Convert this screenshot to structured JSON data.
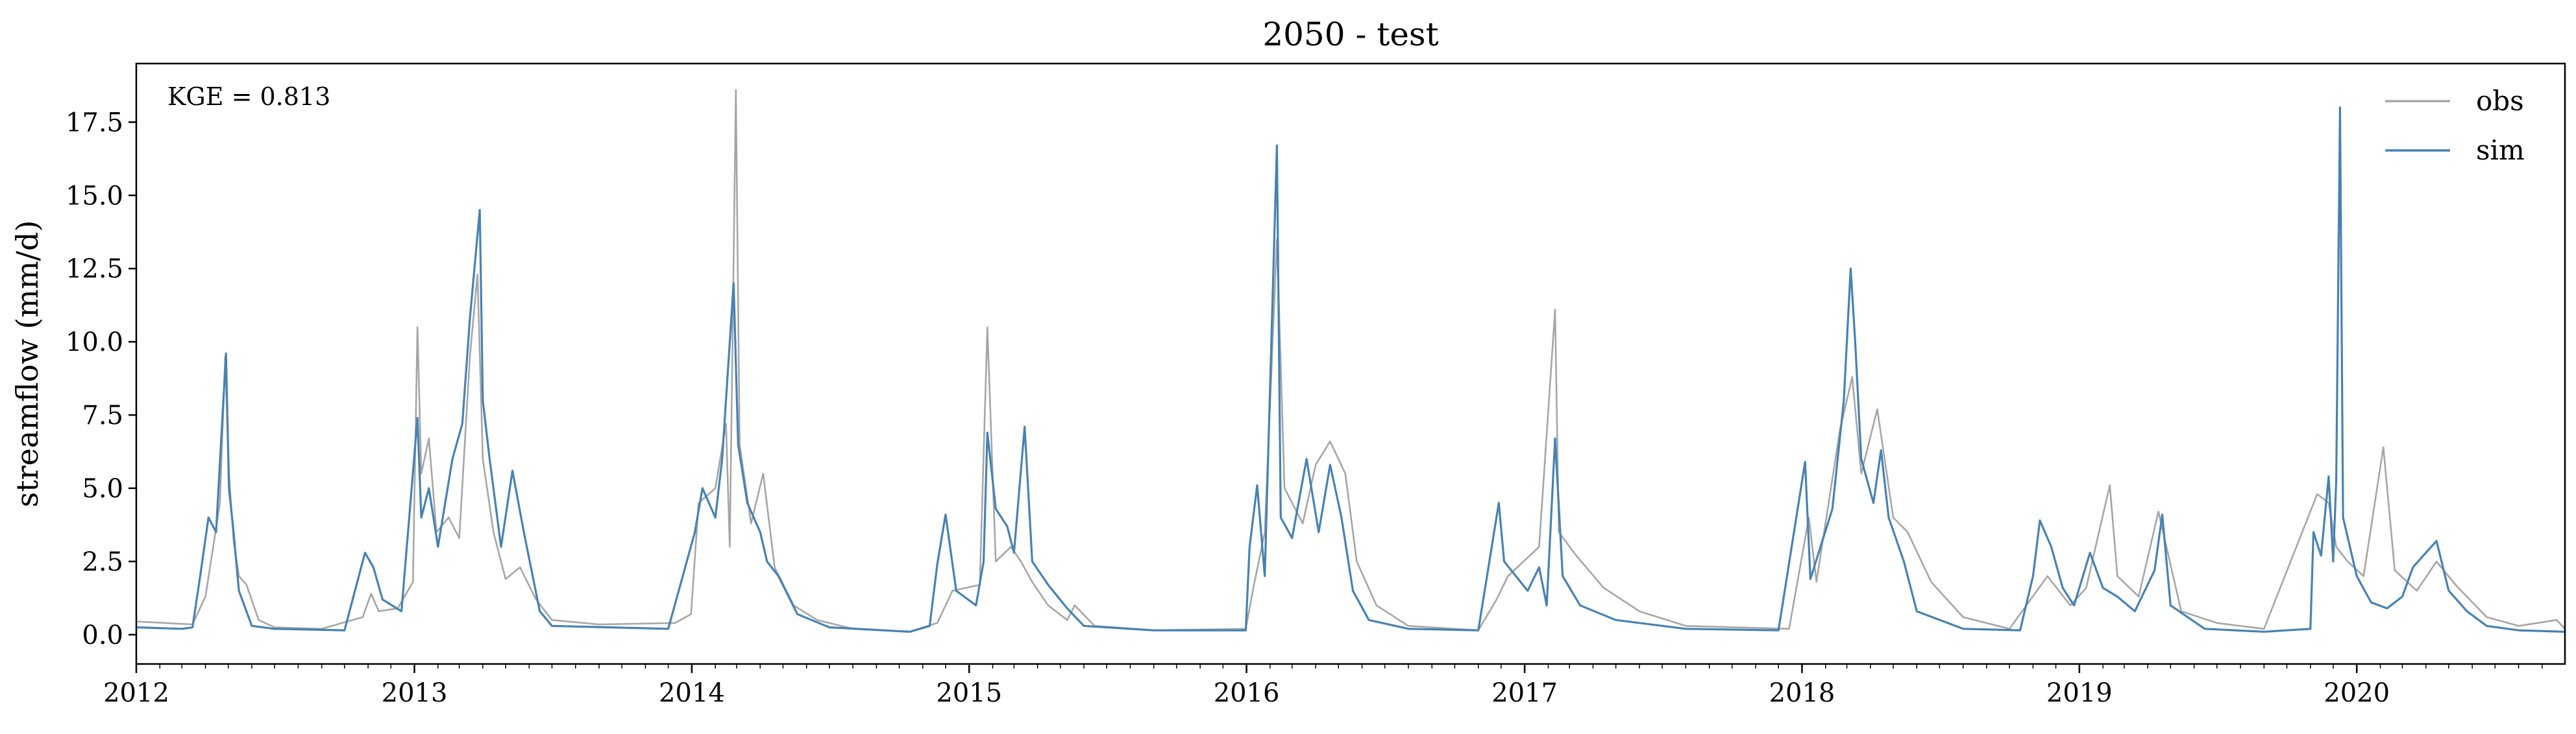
{
  "chart_data": {
    "type": "line",
    "title": "2050 - test",
    "xlabel": "",
    "ylabel": "streamflow (mm/d)",
    "annotation": "KGE = 0.813",
    "xlim": [
      "2012-01-01",
      "2020-10-01"
    ],
    "ylim": [
      -1.0,
      19.5
    ],
    "x_ticks": [
      "2012",
      "2013",
      "2014",
      "2015",
      "2016",
      "2017",
      "2018",
      "2019",
      "2020"
    ],
    "y_ticks": [
      "0.0",
      "2.5",
      "5.0",
      "7.5",
      "10.0",
      "12.5",
      "15.0",
      "17.5"
    ],
    "legend_position": "top-right",
    "grid": false,
    "series": [
      {
        "name": "obs",
        "color": "#a6a6a6",
        "points": [
          [
            "2012-01-01",
            0.45
          ],
          [
            "2012-03-15",
            0.35
          ],
          [
            "2012-04-01",
            1.3
          ],
          [
            "2012-04-10",
            2.8
          ],
          [
            "2012-04-20",
            4.5
          ],
          [
            "2012-04-27",
            9.5
          ],
          [
            "2012-05-02",
            5.5
          ],
          [
            "2012-05-08",
            3.2
          ],
          [
            "2012-05-15",
            2.0
          ],
          [
            "2012-05-25",
            1.7
          ],
          [
            "2012-06-10",
            0.5
          ],
          [
            "2012-07-01",
            0.25
          ],
          [
            "2012-09-01",
            0.2
          ],
          [
            "2012-10-25",
            0.6
          ],
          [
            "2012-11-05",
            1.4
          ],
          [
            "2012-11-15",
            0.8
          ],
          [
            "2012-12-10",
            0.9
          ],
          [
            "2012-12-30",
            1.8
          ],
          [
            "2013-01-05",
            10.5
          ],
          [
            "2013-01-10",
            5.5
          ],
          [
            "2013-01-20",
            6.7
          ],
          [
            "2013-01-30",
            3.5
          ],
          [
            "2013-02-15",
            4.0
          ],
          [
            "2013-03-01",
            3.3
          ],
          [
            "2013-03-15",
            9.5
          ],
          [
            "2013-03-25",
            12.3
          ],
          [
            "2013-04-01",
            6.0
          ],
          [
            "2013-04-15",
            3.5
          ],
          [
            "2013-05-01",
            1.9
          ],
          [
            "2013-05-20",
            2.3
          ],
          [
            "2013-06-10",
            1.2
          ],
          [
            "2013-07-01",
            0.5
          ],
          [
            "2013-09-01",
            0.35
          ],
          [
            "2013-12-10",
            0.4
          ],
          [
            "2013-12-31",
            0.7
          ],
          [
            "2014-01-10",
            4.5
          ],
          [
            "2014-02-01",
            5.0
          ],
          [
            "2014-02-15",
            7.2
          ],
          [
            "2014-02-20",
            3.0
          ],
          [
            "2014-02-28",
            18.6
          ],
          [
            "2014-03-05",
            6.5
          ],
          [
            "2014-03-20",
            3.8
          ],
          [
            "2014-04-05",
            5.5
          ],
          [
            "2014-04-20",
            2.3
          ],
          [
            "2014-05-15",
            1.0
          ],
          [
            "2014-06-15",
            0.5
          ],
          [
            "2014-08-01",
            0.2
          ],
          [
            "2014-10-15",
            0.1
          ],
          [
            "2014-11-20",
            0.4
          ],
          [
            "2014-12-10",
            1.5
          ],
          [
            "2015-01-15",
            1.7
          ],
          [
            "2015-01-25",
            10.5
          ],
          [
            "2015-02-05",
            2.5
          ],
          [
            "2015-02-25",
            3.0
          ],
          [
            "2015-03-10",
            2.5
          ],
          [
            "2015-03-25",
            1.8
          ],
          [
            "2015-04-15",
            1.0
          ],
          [
            "2015-05-10",
            0.5
          ],
          [
            "2015-05-20",
            1.0
          ],
          [
            "2015-06-15",
            0.3
          ],
          [
            "2015-09-01",
            0.15
          ],
          [
            "2015-12-31",
            0.2
          ],
          [
            "2016-01-10",
            1.6
          ],
          [
            "2016-01-25",
            3.5
          ],
          [
            "2016-02-10",
            13.5
          ],
          [
            "2016-02-20",
            5.0
          ],
          [
            "2016-03-15",
            3.8
          ],
          [
            "2016-04-01",
            5.8
          ],
          [
            "2016-04-20",
            6.6
          ],
          [
            "2016-05-10",
            5.5
          ],
          [
            "2016-05-25",
            2.5
          ],
          [
            "2016-06-20",
            1.0
          ],
          [
            "2016-08-01",
            0.3
          ],
          [
            "2016-11-01",
            0.15
          ],
          [
            "2016-11-25",
            1.2
          ],
          [
            "2016-12-10",
            2.0
          ],
          [
            "2017-01-20",
            3.0
          ],
          [
            "2017-02-10",
            11.1
          ],
          [
            "2017-02-15",
            3.5
          ],
          [
            "2017-03-10",
            2.7
          ],
          [
            "2017-04-15",
            1.6
          ],
          [
            "2017-06-01",
            0.8
          ],
          [
            "2017-08-01",
            0.3
          ],
          [
            "2017-12-15",
            0.2
          ],
          [
            "2018-01-10",
            4.0
          ],
          [
            "2018-01-20",
            1.8
          ],
          [
            "2018-02-05",
            4.5
          ],
          [
            "2018-02-20",
            7.0
          ],
          [
            "2018-03-08",
            8.8
          ],
          [
            "2018-03-20",
            5.5
          ],
          [
            "2018-04-10",
            7.7
          ],
          [
            "2018-05-01",
            4.0
          ],
          [
            "2018-05-20",
            3.5
          ],
          [
            "2018-06-20",
            1.8
          ],
          [
            "2018-08-01",
            0.6
          ],
          [
            "2018-10-01",
            0.2
          ],
          [
            "2018-11-20",
            2.0
          ],
          [
            "2018-12-20",
            1.0
          ],
          [
            "2019-01-10",
            1.6
          ],
          [
            "2019-01-25",
            3.3
          ],
          [
            "2019-02-10",
            5.1
          ],
          [
            "2019-02-20",
            2.0
          ],
          [
            "2019-03-20",
            1.3
          ],
          [
            "2019-04-15",
            4.2
          ],
          [
            "2019-05-15",
            0.8
          ],
          [
            "2019-07-01",
            0.4
          ],
          [
            "2019-09-01",
            0.2
          ],
          [
            "2019-11-10",
            4.8
          ],
          [
            "2019-11-25",
            4.5
          ],
          [
            "2019-12-05",
            3.0
          ],
          [
            "2019-12-20",
            2.5
          ],
          [
            "2020-01-10",
            2.0
          ],
          [
            "2020-02-05",
            6.4
          ],
          [
            "2020-02-20",
            2.2
          ],
          [
            "2020-03-20",
            1.5
          ],
          [
            "2020-04-15",
            2.5
          ],
          [
            "2020-05-10",
            1.7
          ],
          [
            "2020-06-20",
            0.6
          ],
          [
            "2020-08-01",
            0.3
          ],
          [
            "2020-09-20",
            0.5
          ],
          [
            "2020-10-01",
            0.2
          ]
        ]
      },
      {
        "name": "sim",
        "color": "#4682b4",
        "points": [
          [
            "2012-01-01",
            0.25
          ],
          [
            "2012-03-01",
            0.2
          ],
          [
            "2012-03-15",
            0.25
          ],
          [
            "2012-03-25",
            2.0
          ],
          [
            "2012-04-05",
            4.0
          ],
          [
            "2012-04-15",
            3.5
          ],
          [
            "2012-04-28",
            9.6
          ],
          [
            "2012-05-02",
            5.0
          ],
          [
            "2012-05-08",
            3.5
          ],
          [
            "2012-05-15",
            1.5
          ],
          [
            "2012-06-01",
            0.3
          ],
          [
            "2012-07-01",
            0.2
          ],
          [
            "2012-10-01",
            0.15
          ],
          [
            "2012-10-28",
            2.8
          ],
          [
            "2012-11-08",
            2.3
          ],
          [
            "2012-11-20",
            1.2
          ],
          [
            "2012-12-15",
            0.8
          ],
          [
            "2013-01-05",
            7.4
          ],
          [
            "2013-01-10",
            4.0
          ],
          [
            "2013-01-20",
            5.0
          ],
          [
            "2013-02-01",
            3.0
          ],
          [
            "2013-02-20",
            6.0
          ],
          [
            "2013-03-05",
            7.2
          ],
          [
            "2013-03-15",
            10.8
          ],
          [
            "2013-03-28",
            14.5
          ],
          [
            "2013-04-01",
            8.0
          ],
          [
            "2013-04-10",
            6.0
          ],
          [
            "2013-04-25",
            3.0
          ],
          [
            "2013-05-10",
            5.6
          ],
          [
            "2013-05-25",
            3.5
          ],
          [
            "2013-06-15",
            0.8
          ],
          [
            "2013-07-01",
            0.3
          ],
          [
            "2013-12-01",
            0.2
          ],
          [
            "2014-01-05",
            3.5
          ],
          [
            "2014-01-15",
            5.0
          ],
          [
            "2014-02-01",
            4.0
          ],
          [
            "2014-02-10",
            6.0
          ],
          [
            "2014-02-25",
            12.0
          ],
          [
            "2014-03-03",
            6.5
          ],
          [
            "2014-03-15",
            4.5
          ],
          [
            "2014-04-01",
            3.5
          ],
          [
            "2014-04-10",
            2.5
          ],
          [
            "2014-04-25",
            2.0
          ],
          [
            "2014-05-20",
            0.7
          ],
          [
            "2014-07-01",
            0.25
          ],
          [
            "2014-10-15",
            0.1
          ],
          [
            "2014-11-10",
            0.3
          ],
          [
            "2014-11-20",
            2.4
          ],
          [
            "2014-12-01",
            4.1
          ],
          [
            "2014-12-15",
            1.5
          ],
          [
            "2015-01-10",
            1.0
          ],
          [
            "2015-01-20",
            2.5
          ],
          [
            "2015-01-25",
            6.9
          ],
          [
            "2015-02-05",
            4.3
          ],
          [
            "2015-02-20",
            3.7
          ],
          [
            "2015-03-01",
            2.8
          ],
          [
            "2015-03-15",
            7.1
          ],
          [
            "2015-03-25",
            2.5
          ],
          [
            "2015-04-15",
            1.7
          ],
          [
            "2015-05-10",
            0.9
          ],
          [
            "2015-06-01",
            0.3
          ],
          [
            "2015-09-01",
            0.15
          ],
          [
            "2015-12-31",
            0.15
          ],
          [
            "2016-01-05",
            3.0
          ],
          [
            "2016-01-15",
            5.1
          ],
          [
            "2016-01-25",
            2.0
          ],
          [
            "2016-02-10",
            16.7
          ],
          [
            "2016-02-15",
            4.0
          ],
          [
            "2016-03-01",
            3.3
          ],
          [
            "2016-03-20",
            6.0
          ],
          [
            "2016-04-05",
            3.5
          ],
          [
            "2016-04-20",
            5.8
          ],
          [
            "2016-05-05",
            4.0
          ],
          [
            "2016-05-20",
            1.5
          ],
          [
            "2016-06-10",
            0.5
          ],
          [
            "2016-08-01",
            0.2
          ],
          [
            "2016-11-01",
            0.15
          ],
          [
            "2016-11-28",
            4.5
          ],
          [
            "2016-12-05",
            2.5
          ],
          [
            "2017-01-05",
            1.5
          ],
          [
            "2017-01-20",
            2.3
          ],
          [
            "2017-01-30",
            1.0
          ],
          [
            "2017-02-10",
            6.7
          ],
          [
            "2017-02-20",
            2.0
          ],
          [
            "2017-03-15",
            1.0
          ],
          [
            "2017-05-01",
            0.5
          ],
          [
            "2017-08-01",
            0.2
          ],
          [
            "2017-12-01",
            0.15
          ],
          [
            "2018-01-05",
            5.9
          ],
          [
            "2018-01-12",
            1.9
          ],
          [
            "2018-02-10",
            4.3
          ],
          [
            "2018-02-25",
            8.0
          ],
          [
            "2018-03-06",
            12.5
          ],
          [
            "2018-03-12",
            10.0
          ],
          [
            "2018-03-20",
            6.0
          ],
          [
            "2018-04-05",
            4.5
          ],
          [
            "2018-04-15",
            6.3
          ],
          [
            "2018-04-25",
            4.0
          ],
          [
            "2018-05-15",
            2.5
          ],
          [
            "2018-06-01",
            0.8
          ],
          [
            "2018-08-01",
            0.2
          ],
          [
            "2018-10-15",
            0.15
          ],
          [
            "2018-11-01",
            2.0
          ],
          [
            "2018-11-10",
            3.9
          ],
          [
            "2018-11-25",
            3.0
          ],
          [
            "2018-12-10",
            1.6
          ],
          [
            "2018-12-25",
            1.0
          ],
          [
            "2019-01-15",
            2.8
          ],
          [
            "2019-02-01",
            1.6
          ],
          [
            "2019-02-20",
            1.3
          ],
          [
            "2019-03-15",
            0.8
          ],
          [
            "2019-04-10",
            2.2
          ],
          [
            "2019-04-20",
            4.1
          ],
          [
            "2019-05-01",
            1.0
          ],
          [
            "2019-06-15",
            0.2
          ],
          [
            "2019-09-01",
            0.1
          ],
          [
            "2019-11-01",
            0.2
          ],
          [
            "2019-11-05",
            3.5
          ],
          [
            "2019-11-15",
            2.7
          ],
          [
            "2019-11-25",
            5.4
          ],
          [
            "2019-12-01",
            2.5
          ],
          [
            "2019-12-05",
            5.3
          ],
          [
            "2019-12-10",
            18.0
          ],
          [
            "2019-12-14",
            4.0
          ],
          [
            "2020-01-01",
            2.0
          ],
          [
            "2020-01-20",
            1.1
          ],
          [
            "2020-02-10",
            0.9
          ],
          [
            "2020-03-01",
            1.3
          ],
          [
            "2020-03-15",
            2.3
          ],
          [
            "2020-04-01",
            2.8
          ],
          [
            "2020-04-15",
            3.2
          ],
          [
            "2020-05-01",
            1.5
          ],
          [
            "2020-05-25",
            0.8
          ],
          [
            "2020-06-20",
            0.3
          ],
          [
            "2020-08-01",
            0.15
          ],
          [
            "2020-10-01",
            0.1
          ]
        ]
      }
    ]
  }
}
